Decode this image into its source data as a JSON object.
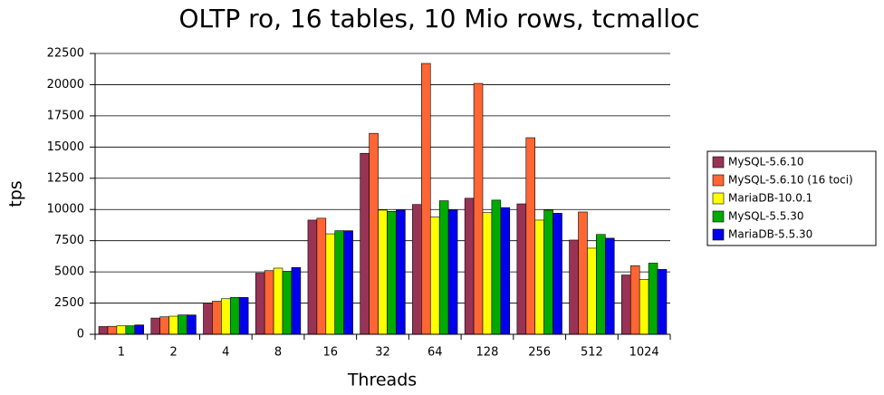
{
  "chart_data": {
    "type": "bar",
    "title": "OLTP ro, 16 tables, 10 Mio rows, tcmalloc",
    "x_label": "Threads",
    "y_label": "tps",
    "categories": [
      "1",
      "2",
      "4",
      "8",
      "16",
      "32",
      "64",
      "128",
      "256",
      "512",
      "1024"
    ],
    "series": [
      {
        "name": "MySQL-5.6.10",
        "color": "#993355",
        "values": [
          620,
          1300,
          2500,
          4900,
          9150,
          14500,
          10400,
          10900,
          10450,
          7550,
          4750
        ]
      },
      {
        "name": "MySQL-5.6.10 (16 toci)",
        "color": "#ff6633",
        "values": [
          640,
          1400,
          2650,
          5100,
          9300,
          16100,
          21700,
          20100,
          15750,
          9800,
          5500
        ]
      },
      {
        "name": "MariaDB-10.0.1",
        "color": "#ffff00",
        "values": [
          680,
          1450,
          2850,
          5300,
          8050,
          9950,
          9400,
          9750,
          9150,
          6900,
          4400
        ]
      },
      {
        "name": "MySQL-5.5.30",
        "color": "#00aa00",
        "values": [
          680,
          1550,
          2950,
          5050,
          8300,
          9850,
          10700,
          10750,
          9950,
          8000,
          5700
        ]
      },
      {
        "name": "MariaDB-5.5.30",
        "color": "#0000ee",
        "values": [
          750,
          1550,
          2950,
          5350,
          8300,
          9950,
          9950,
          10150,
          9700,
          7700,
          5200
        ]
      }
    ],
    "ylim": [
      0,
      22500
    ],
    "yticks": [
      0,
      2500,
      5000,
      7500,
      10000,
      12500,
      15000,
      17500,
      20000,
      22500
    ],
    "grid": true,
    "legend": "right"
  }
}
